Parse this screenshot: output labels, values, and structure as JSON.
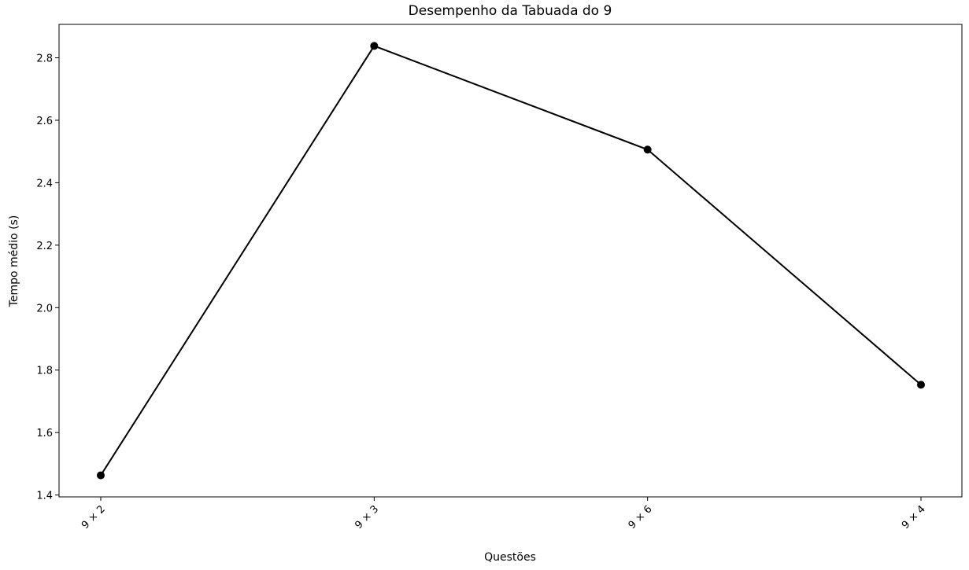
{
  "chart_data": {
    "type": "line",
    "title": "Desempenho da Tabuada do 9",
    "xlabel": "Questões",
    "ylabel": "Tempo médio (s)",
    "categories": [
      "9 × 2",
      "9 × 3",
      "9 × 6",
      "9 × 4"
    ],
    "series": [
      {
        "values": [
          1.463,
          2.838,
          2.506,
          1.753
        ],
        "color": "#000000",
        "marker": "circle"
      }
    ],
    "y_ticks": [
      1.4,
      1.6,
      1.8,
      2.0,
      2.2,
      2.4,
      2.6,
      2.8
    ],
    "ylim": [
      1.394,
      2.907
    ],
    "grid": false,
    "legend": "none"
  }
}
